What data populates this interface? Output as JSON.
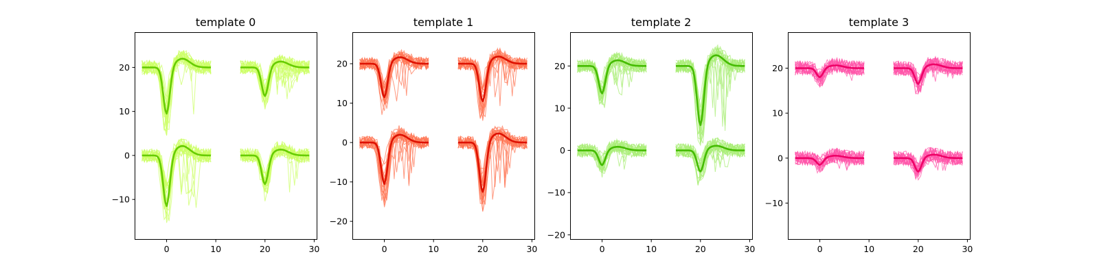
{
  "chart_data": [
    {
      "type": "line",
      "title": "template 0",
      "xlim": [
        -6.5,
        30.5
      ],
      "ylim": [
        -19,
        28
      ],
      "xticks": [
        0,
        10,
        20,
        30
      ],
      "yticks": [
        -10,
        0,
        10,
        20
      ],
      "colors": {
        "mean": "#66cc00",
        "traces": "#ccff66"
      },
      "channels": [
        {
          "x_offset": 0,
          "y_offset": 20,
          "trough": -10.5
        },
        {
          "x_offset": 20,
          "y_offset": 20,
          "trough": -6.5
        },
        {
          "x_offset": 0,
          "y_offset": 0,
          "trough": -11.5
        },
        {
          "x_offset": 20,
          "y_offset": 0,
          "trough": -6.5
        }
      ]
    },
    {
      "type": "line",
      "title": "template 1",
      "xlim": [
        -6.5,
        30.5
      ],
      "ylim": [
        -24.5,
        28
      ],
      "xticks": [
        0,
        10,
        20,
        30
      ],
      "yticks": [
        -20,
        -10,
        0,
        10,
        20
      ],
      "colors": {
        "mean": "#dd1100",
        "traces": "#ff7755"
      },
      "channels": [
        {
          "x_offset": 0,
          "y_offset": 20,
          "trough": -8.5
        },
        {
          "x_offset": 20,
          "y_offset": 20,
          "trough": -9.5
        },
        {
          "x_offset": 0,
          "y_offset": 0,
          "trough": -10.5
        },
        {
          "x_offset": 20,
          "y_offset": 0,
          "trough": -12.5
        }
      ]
    },
    {
      "type": "line",
      "title": "template 2",
      "xlim": [
        -6.5,
        30.5
      ],
      "ylim": [
        -21,
        28
      ],
      "xticks": [
        0,
        10,
        20,
        30
      ],
      "yticks": [
        -20,
        -10,
        0,
        10,
        20
      ],
      "colors": {
        "mean": "#44bb00",
        "traces": "#aaee77"
      },
      "channels": [
        {
          "x_offset": 0,
          "y_offset": 20,
          "trough": -6.5
        },
        {
          "x_offset": 20,
          "y_offset": 20,
          "trough": -14
        },
        {
          "x_offset": 0,
          "y_offset": 0,
          "trough": -3.5
        },
        {
          "x_offset": 20,
          "y_offset": 0,
          "trough": -5
        }
      ]
    },
    {
      "type": "line",
      "title": "template 3",
      "xlim": [
        -6.5,
        30.5
      ],
      "ylim": [
        -18,
        28
      ],
      "xticks": [
        0,
        10,
        20,
        30
      ],
      "yticks": [
        -10,
        0,
        10,
        20
      ],
      "colors": {
        "mean": "#ee0066",
        "traces": "#ff55aa"
      },
      "channels": [
        {
          "x_offset": 0,
          "y_offset": 20,
          "trough": -2
        },
        {
          "x_offset": 20,
          "y_offset": 20,
          "trough": -3.5
        },
        {
          "x_offset": 0,
          "y_offset": 0,
          "trough": -1.5
        },
        {
          "x_offset": 20,
          "y_offset": 0,
          "trough": -3
        }
      ]
    }
  ]
}
